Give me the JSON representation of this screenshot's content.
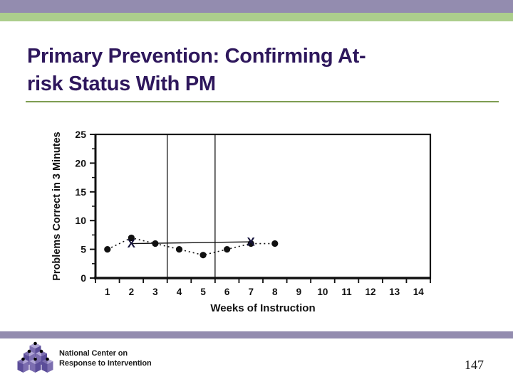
{
  "slide": {
    "title_line1": "Primary Prevention: Confirming At-",
    "title_line2": "risk Status With PM",
    "page_number": "147"
  },
  "footer": {
    "org_line1": "National Center on",
    "org_line2": "Response to Intervention",
    "logo_icon": "rti-pyramid-logo"
  },
  "colors": {
    "accent_purple": "#938CAF",
    "accent_green": "#ACCE8C",
    "title_purple": "#2E175C",
    "rule_green": "#7E9D52",
    "chart_ink": "#111111",
    "text_black": "#1A1A1A",
    "logo_purple_dark": "#5B4D99",
    "logo_purple_mid": "#7C6EB0",
    "logo_purple_light": "#B0A6D6"
  },
  "chart_data": {
    "type": "line",
    "title": "",
    "xlabel": "Weeks of Instruction",
    "ylabel": "Problems Correct in 3 Minutes",
    "xlim": [
      0.5,
      14.5
    ],
    "ylim": [
      0,
      25
    ],
    "xticks": [
      1,
      2,
      3,
      4,
      5,
      6,
      7,
      8,
      9,
      10,
      11,
      12,
      13,
      14
    ],
    "yticks": [
      0,
      5,
      10,
      15,
      20,
      25
    ],
    "y_minor_step": 2.5,
    "grid": "off",
    "legend": "none",
    "phase_lines_x": [
      3.5,
      5.5
    ],
    "series": [
      {
        "name": "weekly-progress-monitoring-scores",
        "marker": "dot",
        "line": "dashed",
        "x": [
          1,
          2,
          3,
          4,
          5,
          6,
          7,
          8
        ],
        "values": [
          5,
          7,
          6,
          5,
          4,
          5,
          6,
          6
        ]
      },
      {
        "name": "benchmark-screening-scores",
        "marker": "X",
        "line": "solid",
        "x": [
          2,
          7
        ],
        "values": [
          6,
          6.3
        ]
      }
    ]
  }
}
